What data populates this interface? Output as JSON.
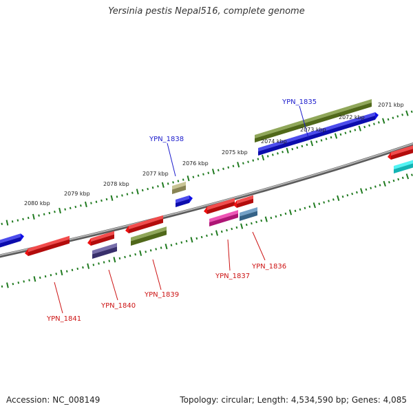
{
  "title": "Yersinia pestis Nepal516, complete genome",
  "footer": {
    "accession": "Accession: NC_008149",
    "summary": "Topology: circular; Length: 4,534,590 bp; Genes: 4,085"
  },
  "ruler": {
    "unit": "kbp",
    "labels": [
      "2071 kbp",
      "2072 kbp",
      "2073 kbp",
      "2074 kbp",
      "2075 kbp",
      "2076 kbp",
      "2077 kbp",
      "2078 kbp",
      "2079 kbp",
      "2080 kbp"
    ]
  },
  "labels": {
    "forward": [
      "YPN_1835",
      "YPN_1838"
    ],
    "reverse": [
      "YPN_1836",
      "YPN_1837",
      "YPN_1839",
      "YPN_1840",
      "YPN_1841"
    ]
  },
  "colors": {
    "forward_label": "#1a1acc",
    "reverse_label": "#cc1111",
    "backbone": "#8c8c8c",
    "tick": "#1f7a1f",
    "olive": "#6b8a23",
    "blue": "#1010e6",
    "red": "#ee1010",
    "khaki": "#b5b070",
    "cyan": "#19f0f0",
    "magenta": "#e81c9c",
    "steel": "#4682b4",
    "slate": "#4b3f8f"
  }
}
